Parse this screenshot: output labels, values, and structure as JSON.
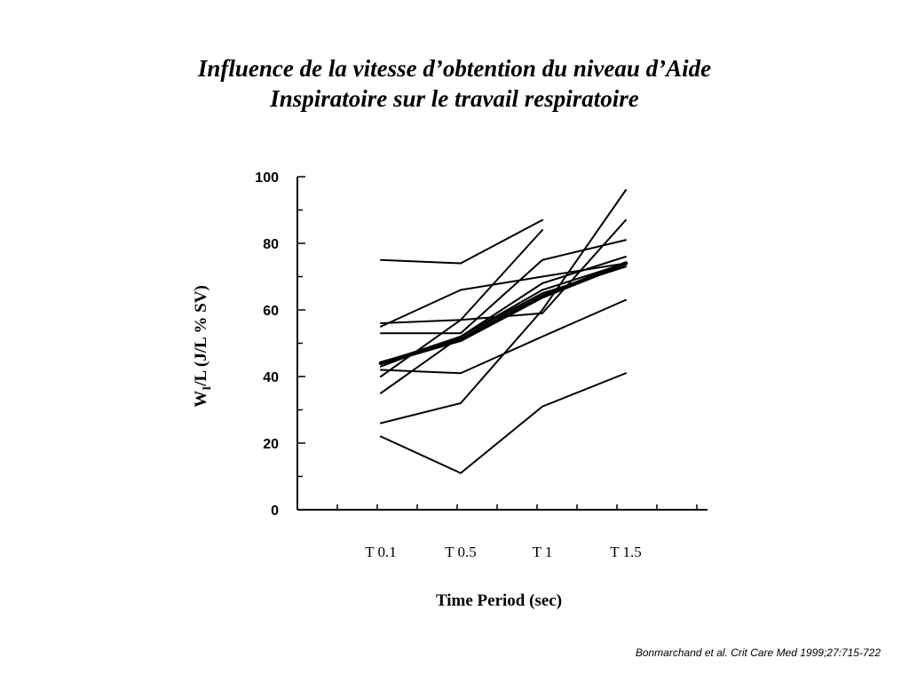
{
  "slide": {
    "title_line1": "Influence de la vitesse d’obtention du niveau d’Aide",
    "title_line2": "Inspiratoire sur le travail respiratoire",
    "citation": "Bonmarchand et al. Crit Care Med 1999;27:715-722"
  },
  "chart_data": {
    "type": "line",
    "categories": [
      "T 0.1",
      "T 0.5",
      "T 1",
      "T 1.5"
    ],
    "xlabel": "Time  Period  (sec)",
    "ylabel": "W",
    "ylabel_sub": "I",
    "ylabel_rest": "/L (J/L % SV)",
    "ylim": [
      0,
      100
    ],
    "yticks": [
      "0",
      "20",
      "40",
      "60",
      "80",
      "100"
    ],
    "grid": false,
    "line_color": "#000000",
    "series": [
      {
        "values": [
          75,
          74,
          87,
          null
        ]
      },
      {
        "values": [
          56,
          57,
          59,
          87
        ]
      },
      {
        "values": [
          53,
          53,
          75,
          81
        ]
      },
      {
        "values": [
          55,
          66,
          70,
          74
        ]
      },
      {
        "values": [
          44,
          52,
          65,
          73
        ]
      },
      {
        "values": [
          43,
          52,
          66,
          74
        ]
      },
      {
        "values": [
          42,
          41,
          52,
          63
        ]
      },
      {
        "values": [
          40,
          57,
          84,
          null
        ]
      },
      {
        "values": [
          35,
          52,
          68,
          76
        ]
      },
      {
        "values": [
          26,
          32,
          60,
          96
        ]
      },
      {
        "values": [
          22,
          11,
          31,
          41
        ]
      }
    ],
    "mean_values": [
      44,
      51,
      64,
      74
    ]
  }
}
